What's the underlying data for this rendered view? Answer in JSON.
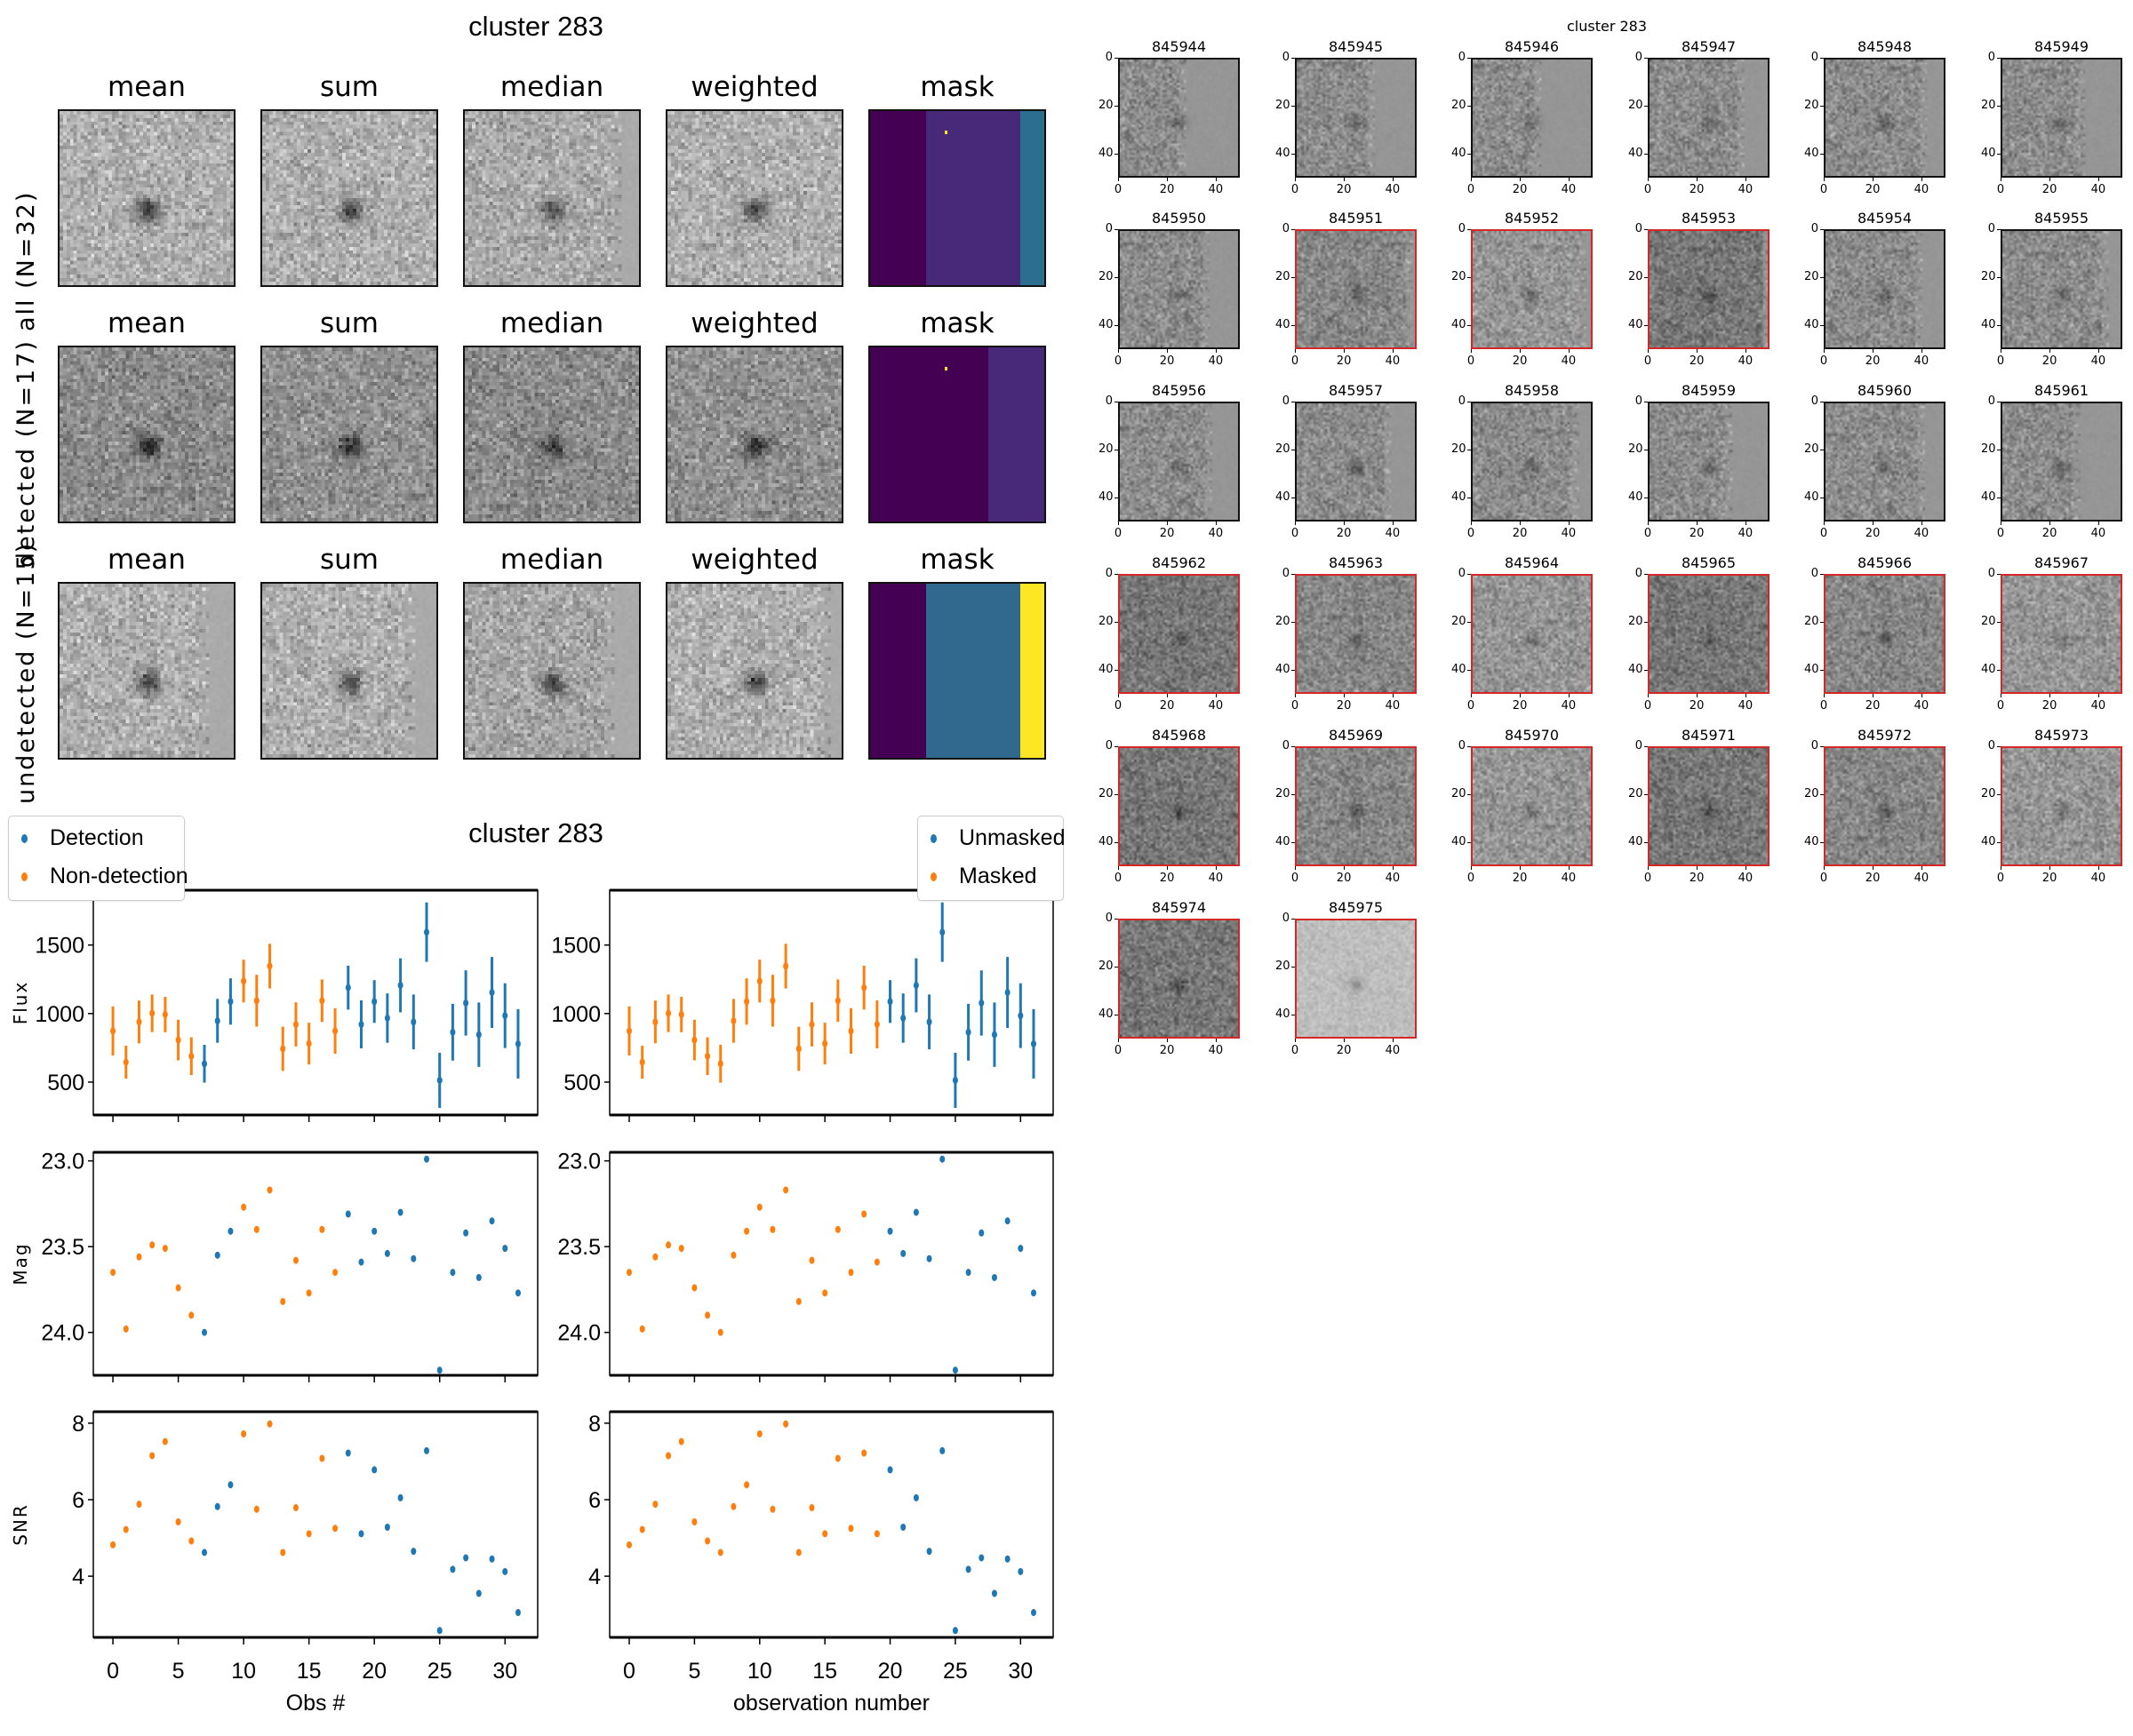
{
  "stack_figure": {
    "title": "cluster 283",
    "column_titles": [
      "mean",
      "sum",
      "median",
      "weighted",
      "mask"
    ],
    "rows": [
      {
        "label": "all (N=32)",
        "mask_colors": [
          "#440154",
          "#482878",
          "#2c6e8f"
        ],
        "mask_fractions": [
          0.32,
          0.54,
          0.14
        ]
      },
      {
        "label": "detected (N=17)",
        "mask_colors": [
          "#440154",
          "#482878"
        ],
        "mask_fractions": [
          0.68,
          0.32
        ]
      },
      {
        "label": "undetected (N=15)",
        "mask_colors": [
          "#440154",
          "#31688e",
          "#fde725"
        ],
        "mask_fractions": [
          0.32,
          0.54,
          0.14
        ]
      }
    ]
  },
  "lightcurve_figure": {
    "title": "cluster 283",
    "legend_left": [
      {
        "label": "Detection",
        "color": "#1f77b4"
      },
      {
        "label": "Non-detection",
        "color": "#ff7f0e"
      }
    ],
    "legend_right": [
      {
        "label": "Unmasked",
        "color": "#1f77b4"
      },
      {
        "label": "Masked",
        "color": "#ff7f0e"
      }
    ],
    "xlabel_left": "Obs #",
    "xlabel_right": "observation number"
  },
  "chart_data": [
    {
      "type": "scatter",
      "title": "cluster 283",
      "panels": [
        "Flux",
        "Mag",
        "SNR"
      ],
      "x": [
        0,
        1,
        2,
        3,
        4,
        5,
        6,
        7,
        8,
        9,
        10,
        11,
        12,
        13,
        14,
        15,
        16,
        17,
        18,
        19,
        20,
        21,
        22,
        23,
        24,
        25,
        26,
        27,
        28,
        29,
        30,
        31
      ],
      "flux": [
        873,
        645,
        939,
        1002,
        993,
        807,
        689,
        634,
        947,
        1088,
        1237,
        1094,
        1346,
        743,
        921,
        781,
        1094,
        873,
        1189,
        921,
        1088,
        967,
        1206,
        939,
        1594,
        513,
        864,
        1077,
        846,
        1154,
        985,
        779
      ],
      "flux_err": [
        179,
        120,
        156,
        137,
        129,
        148,
        138,
        138,
        160,
        169,
        156,
        189,
        163,
        161,
        161,
        152,
        155,
        166,
        160,
        175,
        156,
        180,
        197,
        200,
        217,
        201,
        207,
        238,
        235,
        259,
        236,
        253
      ],
      "mag": [
        23.65,
        23.98,
        23.56,
        23.49,
        23.51,
        23.74,
        23.9,
        24.0,
        23.55,
        23.41,
        23.27,
        23.4,
        23.17,
        23.82,
        23.58,
        23.77,
        23.4,
        23.65,
        23.31,
        23.59,
        23.41,
        23.54,
        23.3,
        23.57,
        22.99,
        24.22,
        23.65,
        23.42,
        23.68,
        23.35,
        23.51,
        23.77
      ],
      "snr": [
        4.82,
        5.22,
        5.88,
        7.15,
        7.52,
        5.42,
        4.92,
        4.62,
        5.82,
        6.39,
        7.72,
        5.75,
        7.98,
        4.62,
        5.79,
        5.11,
        7.08,
        5.25,
        7.22,
        5.11,
        6.78,
        5.28,
        6.05,
        4.65,
        7.28,
        2.58,
        4.18,
        4.48,
        3.55,
        4.45,
        4.12,
        3.05
      ],
      "detection": [
        false,
        false,
        false,
        false,
        false,
        false,
        false,
        true,
        true,
        true,
        false,
        false,
        false,
        false,
        false,
        false,
        false,
        false,
        true,
        true,
        true,
        true,
        true,
        true,
        true,
        true,
        true,
        true,
        true,
        true,
        true,
        true
      ],
      "masked": [
        true,
        true,
        true,
        true,
        true,
        true,
        true,
        true,
        true,
        true,
        true,
        true,
        true,
        true,
        true,
        true,
        true,
        true,
        true,
        true,
        false,
        false,
        false,
        false,
        false,
        false,
        false,
        false,
        false,
        false,
        false,
        false
      ],
      "xlim": [
        -1.5,
        32.5
      ],
      "flux_ylim": [
        260,
        1900
      ],
      "mag_ylim": [
        24.25,
        22.95
      ],
      "snr_ylim": [
        2.4,
        8.3
      ],
      "xticks": [
        "0",
        "5",
        "10",
        "15",
        "20",
        "25",
        "30"
      ],
      "flux_yticks": [
        "500",
        "1000",
        "1500"
      ],
      "mag_yticks": [
        "23.0",
        "23.5",
        "24.0"
      ],
      "snr_yticks": [
        "4",
        "6",
        "8"
      ],
      "ylabels": [
        "Flux",
        "Mag",
        "SNR"
      ],
      "xlabel": "Obs #",
      "xlabel_right": "observation number",
      "series_colors": {
        "blue": "#1f77b4",
        "orange": "#ff7f0e"
      }
    }
  ],
  "thumbnail_grid": {
    "title": "cluster 283",
    "axis_ticks": [
      "0",
      "20",
      "40"
    ],
    "items": [
      {
        "id": "845944",
        "red": false,
        "streak": 0.48
      },
      {
        "id": "845945",
        "red": false,
        "streak": 0.58
      },
      {
        "id": "845946",
        "red": false,
        "streak": 0.5
      },
      {
        "id": "845947",
        "red": false,
        "streak": 0.72
      },
      {
        "id": "845948",
        "red": false,
        "streak": 0.78
      },
      {
        "id": "845949",
        "red": false,
        "streak": 0.62
      },
      {
        "id": "845950",
        "red": false,
        "streak": 0.68
      },
      {
        "id": "845951",
        "red": true,
        "streak": 0.9
      },
      {
        "id": "845952",
        "red": true,
        "streak": 0.88
      },
      {
        "id": "845953",
        "red": true,
        "streak": 0.95
      },
      {
        "id": "845954",
        "red": false,
        "streak": 0.74
      },
      {
        "id": "845955",
        "red": false,
        "streak": 0.82
      },
      {
        "id": "845956",
        "red": false,
        "streak": 0.7
      },
      {
        "id": "845957",
        "red": false,
        "streak": 0.72
      },
      {
        "id": "845958",
        "red": false,
        "streak": 0.82
      },
      {
        "id": "845959",
        "red": false,
        "streak": 0.62
      },
      {
        "id": "845960",
        "red": false,
        "streak": 0.76
      },
      {
        "id": "845961",
        "red": false,
        "streak": 0.58
      },
      {
        "id": "845962",
        "red": true,
        "streak": 1
      },
      {
        "id": "845963",
        "red": true,
        "streak": 1
      },
      {
        "id": "845964",
        "red": true,
        "streak": 1
      },
      {
        "id": "845965",
        "red": true,
        "streak": 1
      },
      {
        "id": "845966",
        "red": true,
        "streak": 1
      },
      {
        "id": "845967",
        "red": true,
        "streak": 1
      },
      {
        "id": "845968",
        "red": true,
        "streak": 1
      },
      {
        "id": "845969",
        "red": true,
        "streak": 1
      },
      {
        "id": "845970",
        "red": true,
        "streak": 1
      },
      {
        "id": "845971",
        "red": true,
        "streak": 1
      },
      {
        "id": "845972",
        "red": true,
        "streak": 1
      },
      {
        "id": "845973",
        "red": true,
        "streak": 1
      },
      {
        "id": "845974",
        "red": true,
        "streak": 1
      },
      {
        "id": "845975",
        "red": true,
        "streak": 1
      }
    ]
  }
}
